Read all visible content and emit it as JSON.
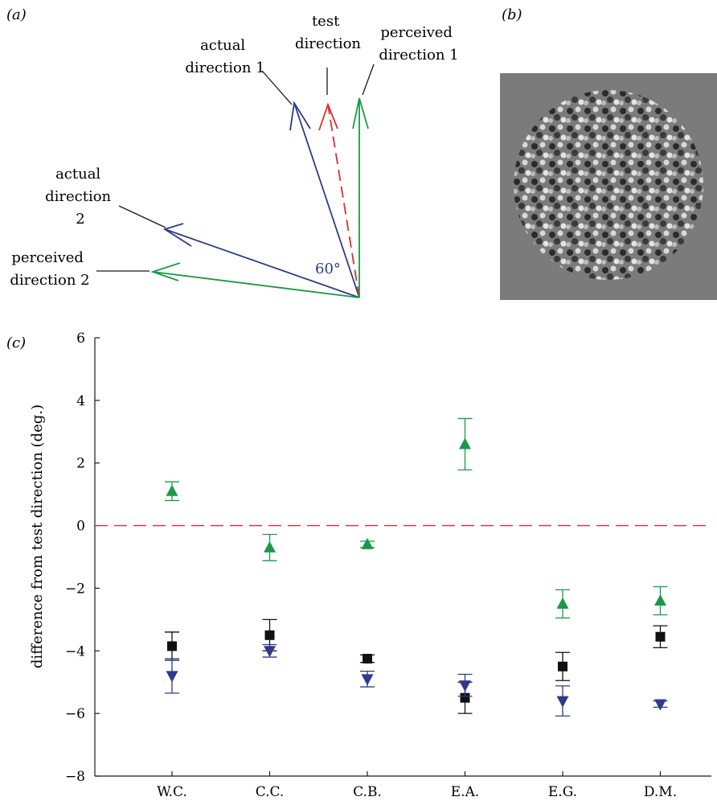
{
  "panel_labels": {
    "a": "(a)",
    "b": "(b)",
    "c": "(c)"
  },
  "panel_a": {
    "actual1": [
      "actual",
      "direction 1"
    ],
    "test": [
      "test",
      "direction"
    ],
    "perceived1": [
      "perceived",
      "direction 1"
    ],
    "actual2": [
      "actual",
      "direction",
      "2"
    ],
    "perceived2": [
      "perceived",
      "direction 2"
    ],
    "angle": "60°",
    "colors": {
      "actual": "#2e3a8c",
      "test": "#d9302c",
      "perceived": "#1a9a48"
    }
  },
  "chart_data": {
    "type": "scatter",
    "ylabel": "difference from test direction (deg.)",
    "ylim": [
      -8,
      6
    ],
    "yticks": [
      "6",
      "4",
      "2",
      "0",
      "−2",
      "−4",
      "−6",
      "−8"
    ],
    "categories": [
      "W.C.",
      "C.C.",
      "C.B.",
      "E.A.",
      "E.G.",
      "D.M."
    ],
    "reference_line": {
      "y": 0,
      "color": "#d9302c",
      "style": "dashed"
    },
    "series": [
      {
        "marker": "triangle-up",
        "color": "#1a9a48",
        "values": [
          1.1,
          -0.7,
          -0.6,
          2.6,
          -2.5,
          -2.4
        ],
        "errors": [
          0.3,
          0.42,
          0.1,
          0.82,
          0.45,
          0.45
        ]
      },
      {
        "marker": "square",
        "color": "#111111",
        "values": [
          -3.85,
          -3.5,
          -4.25,
          -5.5,
          -4.5,
          -3.55
        ],
        "errors": [
          0.45,
          0.5,
          0.12,
          0.5,
          0.45,
          0.35
        ]
      },
      {
        "marker": "triangle-down",
        "color": "#2e3a8c",
        "values": [
          -4.8,
          -4.0,
          -4.9,
          -5.1,
          -5.6,
          -5.7
        ],
        "errors": [
          0.55,
          0.2,
          0.25,
          0.35,
          0.48,
          0.1
        ]
      }
    ]
  }
}
